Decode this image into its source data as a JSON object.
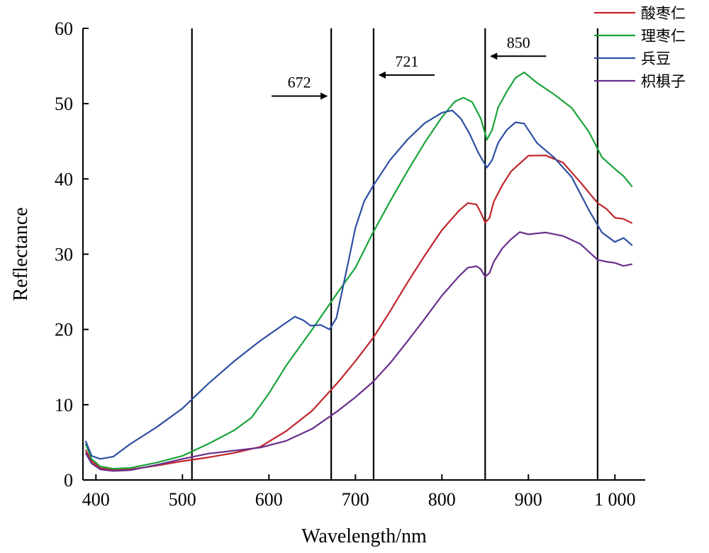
{
  "chart_data": {
    "type": "line",
    "title": "",
    "xlabel": "Wavelength/nm",
    "ylabel": "Reflectance",
    "xlim": [
      385,
      1035
    ],
    "ylim": [
      0,
      60
    ],
    "x_ticks": [
      400,
      500,
      600,
      700,
      800,
      900,
      1000
    ],
    "x_tick_labels": [
      "400",
      "500",
      "600",
      "700",
      "800",
      "900",
      "1 000"
    ],
    "y_ticks": [
      0,
      10,
      20,
      30,
      40,
      50,
      60
    ],
    "y_tick_labels": [
      "0",
      "10",
      "20",
      "30",
      "40",
      "50",
      "60"
    ],
    "grid": false,
    "legend_position": "top-right",
    "vertical_lines": [
      511,
      672,
      721,
      850,
      980
    ],
    "annotations": [
      {
        "text": "672",
        "x": 672,
        "arrow_dir": "right",
        "y": 51
      },
      {
        "text": "721",
        "x": 721,
        "arrow_dir": "left",
        "y": 53.8
      },
      {
        "text": "850",
        "x": 850,
        "arrow_dir": "left",
        "y": 56.3
      }
    ],
    "series": [
      {
        "name": "酸枣仁",
        "color": "#c0262c",
        "x": [
          388,
          395,
          405,
          420,
          440,
          470,
          500,
          530,
          560,
          590,
          620,
          650,
          680,
          700,
          720,
          740,
          760,
          780,
          800,
          820,
          830,
          840,
          845,
          850,
          855,
          860,
          870,
          880,
          890,
          900,
          920,
          940,
          960,
          980,
          990,
          1000,
          1010,
          1020
        ],
        "y": [
          4.0,
          2.5,
          1.6,
          1.3,
          1.4,
          1.9,
          2.5,
          3.0,
          3.6,
          4.4,
          6.5,
          9.2,
          13.0,
          15.8,
          18.8,
          22.4,
          26.2,
          29.8,
          33.2,
          35.8,
          36.8,
          36.6,
          35.5,
          34.2,
          34.8,
          37.0,
          39.2,
          41.0,
          42.4,
          43.2,
          43.0,
          41.8,
          39.8,
          36.8,
          35.8,
          35.2,
          34.8,
          34.0
        ]
      },
      {
        "name": "理枣仁",
        "color": "#1aa33a",
        "x": [
          388,
          395,
          405,
          420,
          440,
          470,
          500,
          530,
          560,
          580,
          600,
          620,
          650,
          680,
          700,
          720,
          740,
          760,
          780,
          800,
          815,
          825,
          835,
          845,
          852,
          858,
          865,
          875,
          885,
          895,
          910,
          930,
          950,
          970,
          985,
          1000,
          1010,
          1020
        ],
        "y": [
          4.8,
          2.8,
          1.8,
          1.5,
          1.6,
          2.3,
          3.2,
          4.8,
          6.6,
          8.3,
          11.5,
          15.2,
          20.0,
          25.0,
          28.2,
          32.8,
          37.0,
          41.0,
          44.8,
          48.2,
          50.3,
          50.8,
          50.2,
          48.0,
          45.2,
          46.5,
          49.5,
          51.6,
          53.3,
          53.8,
          53.0,
          51.2,
          49.2,
          46.6,
          43.0,
          41.2,
          40.0,
          39.2
        ]
      },
      {
        "name": "兵豆",
        "color": "#2d4fa1",
        "x": [
          388,
          395,
          405,
          420,
          440,
          470,
          500,
          530,
          560,
          590,
          615,
          630,
          640,
          648,
          660,
          670,
          678,
          690,
          700,
          710,
          720,
          740,
          760,
          780,
          800,
          812,
          822,
          832,
          842,
          852,
          858,
          865,
          875,
          885,
          895,
          910,
          930,
          950,
          970,
          985,
          1000,
          1010,
          1020
        ],
        "y": [
          5.2,
          3.2,
          2.8,
          3.1,
          4.8,
          7.0,
          9.5,
          12.8,
          15.8,
          18.5,
          20.5,
          21.7,
          21.2,
          20.5,
          20.6,
          20.0,
          21.5,
          28.0,
          33.5,
          37.0,
          39.0,
          42.5,
          45.2,
          47.4,
          48.8,
          49.1,
          48.0,
          46.0,
          43.5,
          41.5,
          42.5,
          44.8,
          46.5,
          47.4,
          47.0,
          45.0,
          42.8,
          40.0,
          36.2,
          33.0,
          31.5,
          31.8,
          31.4
        ]
      },
      {
        "name": "枳椇子",
        "color": "#6a2f8c",
        "x": [
          388,
          395,
          405,
          420,
          440,
          470,
          500,
          530,
          560,
          590,
          620,
          650,
          680,
          700,
          720,
          740,
          760,
          780,
          800,
          820,
          830,
          840,
          845,
          850,
          855,
          860,
          870,
          880,
          890,
          900,
          920,
          940,
          960,
          980,
          990,
          1000,
          1010,
          1020
        ],
        "y": [
          3.6,
          2.2,
          1.4,
          1.2,
          1.3,
          2.0,
          2.8,
          3.5,
          3.9,
          4.3,
          5.2,
          6.8,
          9.2,
          11.0,
          13.0,
          15.5,
          18.4,
          21.4,
          24.5,
          27.1,
          28.2,
          28.4,
          28.0,
          27.0,
          27.5,
          29.0,
          30.8,
          32.0,
          32.7,
          33.0,
          33.0,
          32.3,
          31.0,
          29.5,
          29.0,
          28.6,
          28.8,
          28.8
        ]
      }
    ]
  }
}
